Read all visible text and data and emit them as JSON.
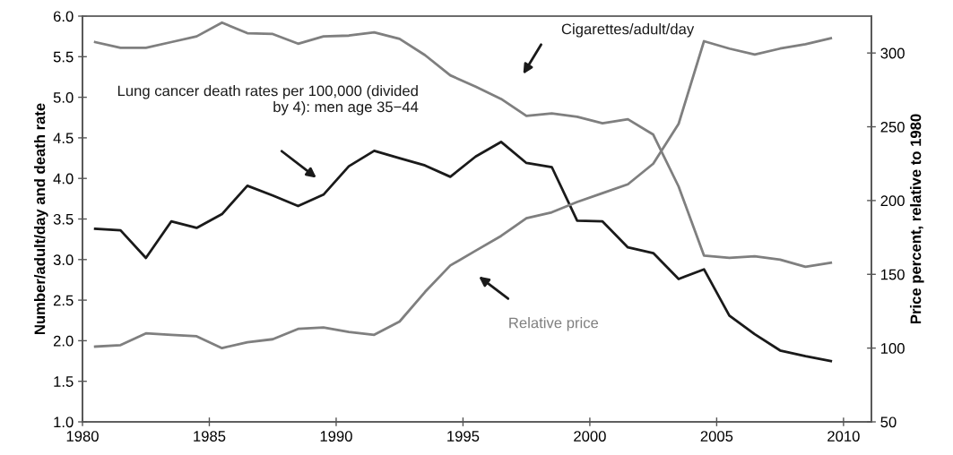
{
  "chart_data": {
    "type": "line",
    "x": [
      1980.5,
      1981.5,
      1982.5,
      1983.5,
      1984.5,
      1985.5,
      1986.5,
      1987.5,
      1988.5,
      1989.5,
      1990.5,
      1991.5,
      1992.5,
      1993.5,
      1994.5,
      1995.5,
      1996.5,
      1997.5,
      1998.5,
      1999.5,
      2000.5,
      2001.5,
      2002.5,
      2003.5,
      2004.5,
      2005.5,
      2006.5,
      2007.5,
      2008.5,
      2009.5
    ],
    "series": [
      {
        "color": "#7f7f7f",
        "values": [
          5.68,
          5.61,
          5.61,
          5.68,
          5.75,
          5.92,
          5.79,
          5.78,
          5.66,
          5.75,
          5.76,
          5.8,
          5.72,
          5.52,
          5.27,
          5.13,
          4.98,
          4.77,
          4.8,
          4.76,
          4.68,
          4.73,
          4.54,
          3.9,
          3.05,
          3.02,
          3.04,
          3.0,
          2.91,
          2.96
        ]
      },
      {
        "color": "#1a1a1a",
        "values": [
          3.38,
          3.36,
          3.02,
          3.47,
          3.39,
          3.56,
          3.91,
          3.79,
          3.66,
          3.8,
          4.15,
          4.34,
          4.25,
          4.16,
          4.02,
          4.27,
          4.45,
          4.19,
          4.14,
          3.48,
          3.47,
          3.15,
          3.08,
          2.76,
          2.88,
          2.31,
          2.08,
          1.88,
          1.81,
          1.75
        ]
      },
      {
        "color": "#7f7f7f",
        "axis": "y2",
        "values": [
          101,
          102,
          110,
          109,
          108,
          100,
          104,
          106,
          113,
          114,
          111,
          109,
          118,
          138,
          156,
          166,
          176,
          188,
          192,
          199,
          205,
          211,
          225,
          252,
          308,
          303,
          299,
          303,
          306,
          310
        ]
      }
    ],
    "xlim": [
      1980,
      2011.1
    ],
    "xticks": [
      1980,
      1985,
      1990,
      1995,
      2000,
      2005,
      2010
    ],
    "ylim": [
      1.0,
      6.0
    ],
    "yticks": [
      {
        "value": 1.0,
        "label": "1.0"
      },
      {
        "value": 1.5,
        "label": "1.5"
      },
      {
        "value": 2.0,
        "label": "2.0"
      },
      {
        "value": 2.5,
        "label": "2.5"
      },
      {
        "value": 3.0,
        "label": "3.0"
      },
      {
        "value": 3.5,
        "label": "3.5"
      },
      {
        "value": 4.0,
        "label": "4.0"
      },
      {
        "value": 4.5,
        "label": "4.5"
      },
      {
        "value": 5.0,
        "label": "5.0"
      },
      {
        "value": 5.5,
        "label": "5.5"
      },
      {
        "value": 6.0,
        "label": "6.0"
      }
    ],
    "y2lim": [
      50,
      325
    ],
    "y2ticks": [
      50,
      100,
      150,
      200,
      250,
      300
    ],
    "ylabel": "Number/adult/day and death rate",
    "y2label": "Price percent, relative to 1980",
    "annotations": [
      "Cigarettes/adult/day",
      "Lung cancer death rates per 100,000 (divided\nby 4): men age 35−44",
      "Relative price"
    ],
    "grid": false,
    "legend": false,
    "marker": "none",
    "line_style": "solid"
  }
}
